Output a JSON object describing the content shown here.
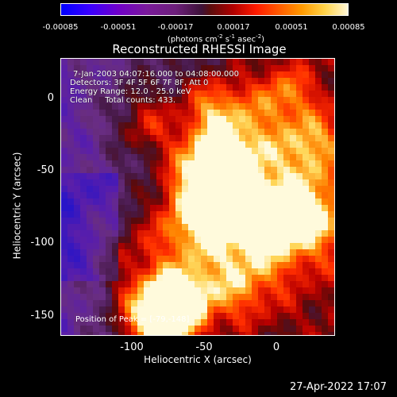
{
  "colorbar": {
    "ticks": [
      "-0.00085",
      "-0.00051",
      "-0.00017",
      "0.00017",
      "0.00051",
      "0.00085"
    ],
    "unit": {
      "prefix": "(photons cm",
      "exp1": "-2",
      "mid1": " s",
      "exp2": "-1",
      "mid2": " asec",
      "exp3": "-2",
      "suffix": ")"
    }
  },
  "title": "Reconstructed RHESSI Image",
  "annotation": {
    "time_range": "7-Jan-2003 04:07:16.000 to 04:08:00.000",
    "detectors": "Detectors: 3F 4F 5F 6F 7F 8F, Att 0",
    "energy": "Energy Range: 12.0 - 25.0 keV",
    "clean": "Clean     Total counts: 433."
  },
  "peak": "Position of Peak = [-79,-148]",
  "x_axis": {
    "label": "Heliocentric X (arcsec)",
    "ticks": [
      "-100",
      "-50",
      "0"
    ]
  },
  "y_axis": {
    "label": "Heliocentric Y (arcsec)",
    "ticks": [
      "0",
      "-50",
      "-100",
      "-150"
    ]
  },
  "footer_timestamp": "27-Apr-2022 17:07",
  "colors": {
    "background": "#000000",
    "text": "#ffffff",
    "flux_low": "#3a00ff",
    "flux_zero": "#3d1238",
    "flux_high": "#fff7d6"
  }
}
